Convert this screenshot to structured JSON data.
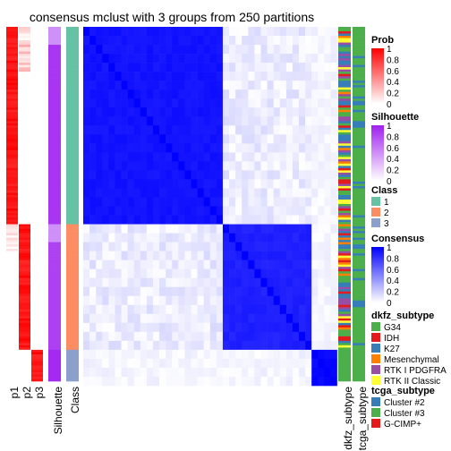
{
  "chart_data": {
    "type": "heatmap",
    "title": "consensus mclust with 3 groups from 250 partitions",
    "groups": [
      {
        "class": "1",
        "n_samples": 88
      },
      {
        "class": "2",
        "n_samples": 56
      },
      {
        "class": "3",
        "n_samples": 14
      }
    ],
    "prob_columns": [
      "p1",
      "p2",
      "p3"
    ],
    "column_labels": [
      "p1",
      "p2",
      "p3",
      "Silhouette",
      "Class",
      "dkfz_subtype",
      "tcga_subtype"
    ],
    "consensus_within_group_typical": [
      0.95,
      0.9,
      1.0
    ],
    "legends": [
      {
        "title": "Prob",
        "type": "continuous",
        "colors": [
          "#ffffff",
          "#ff0000"
        ],
        "ticks": [
          "1",
          "0.8",
          "0.6",
          "0.4",
          "0.2",
          "0"
        ]
      },
      {
        "title": "Silhouette",
        "type": "continuous",
        "colors": [
          "#ffffff",
          "#9f1ff0"
        ],
        "ticks": [
          "1",
          "0.8",
          "0.6",
          "0.4",
          "0.2",
          "0"
        ]
      },
      {
        "title": "Class",
        "type": "categorical",
        "entries": [
          {
            "label": "1",
            "color": "#66c2a5"
          },
          {
            "label": "2",
            "color": "#fc8d62"
          },
          {
            "label": "3",
            "color": "#8da0cb"
          }
        ]
      },
      {
        "title": "Consensus",
        "type": "continuous",
        "colors": [
          "#ffffff",
          "#0000ff"
        ],
        "ticks": [
          "1",
          "0.8",
          "0.6",
          "0.4",
          "0.2",
          "0"
        ]
      },
      {
        "title": "dkfz_subtype",
        "type": "categorical",
        "entries": [
          {
            "label": "G34",
            "color": "#4daf4a"
          },
          {
            "label": "IDH",
            "color": "#e41a1c"
          },
          {
            "label": "K27",
            "color": "#377eb8"
          },
          {
            "label": "Mesenchymal",
            "color": "#ff7f00"
          },
          {
            "label": "RTK I PDGFRA",
            "color": "#984ea3"
          },
          {
            "label": "RTK II Classic",
            "color": "#ffff33"
          }
        ]
      },
      {
        "title": "tcga_subtype",
        "type": "categorical",
        "entries": [
          {
            "label": "Cluster #2",
            "color": "#377eb8"
          },
          {
            "label": "Cluster #3",
            "color": "#4daf4a"
          },
          {
            "label": "G-CIMP+",
            "color": "#e41a1c"
          }
        ]
      }
    ]
  }
}
